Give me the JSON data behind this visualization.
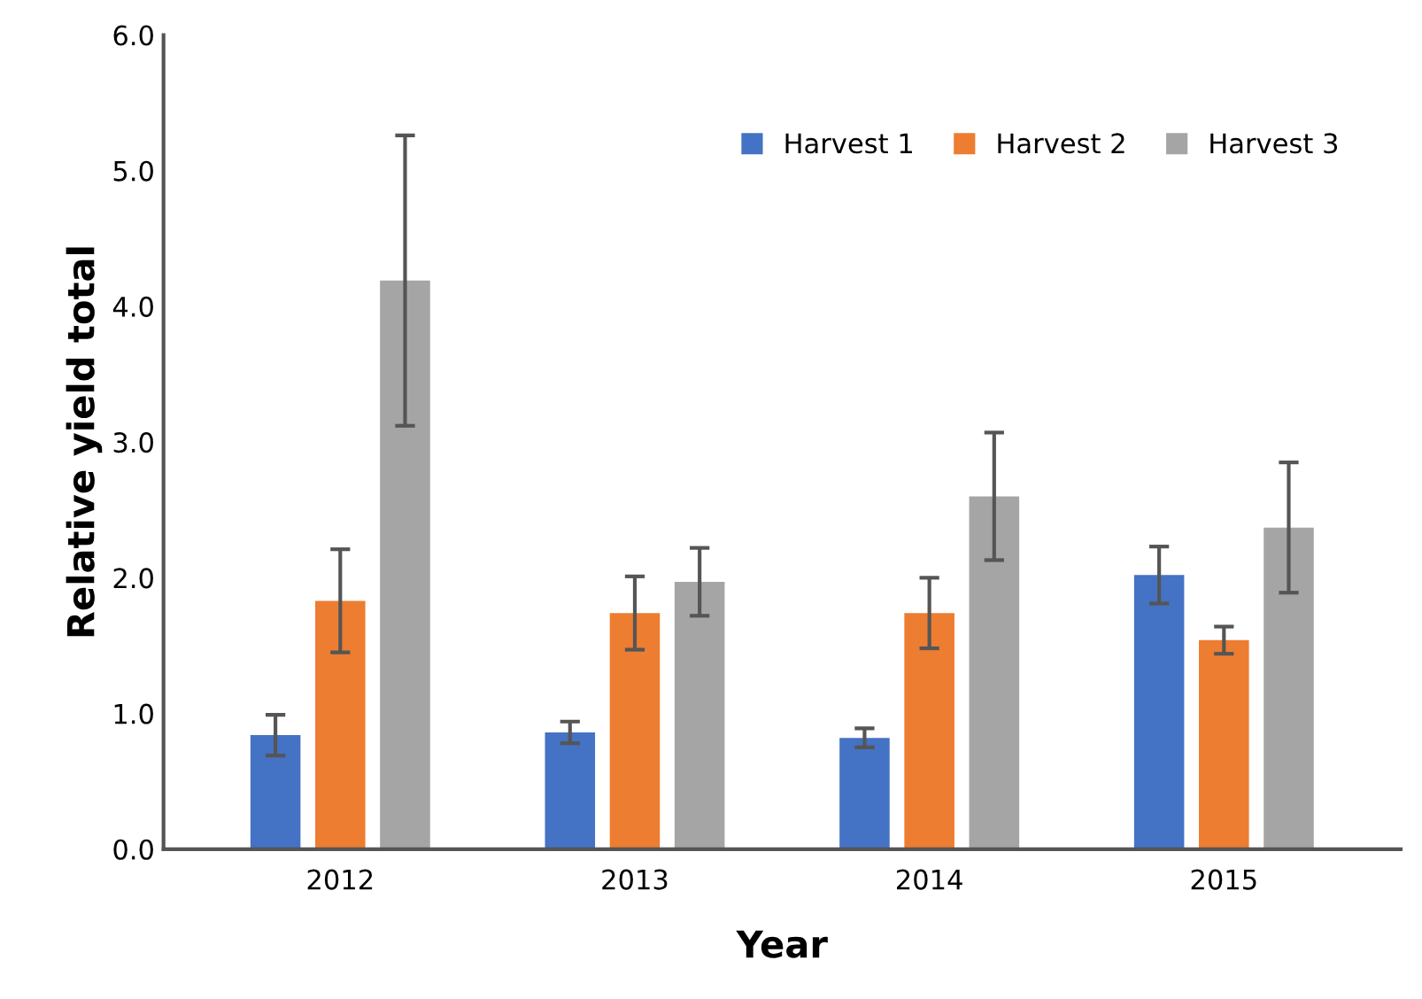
{
  "chart_data": {
    "type": "bar",
    "xlabel": "Year",
    "ylabel": "Relative yield total",
    "categories": [
      "2012",
      "2013",
      "2014",
      "2015"
    ],
    "series": [
      {
        "name": "Harvest 1",
        "color": "#4472c4",
        "values": [
          0.84,
          0.86,
          0.82,
          2.02
        ],
        "errors": [
          0.15,
          0.08,
          0.07,
          0.21
        ]
      },
      {
        "name": "Harvest 2",
        "color": "#ed7d31",
        "values": [
          1.83,
          1.74,
          1.74,
          1.54
        ],
        "errors": [
          0.38,
          0.27,
          0.26,
          0.1
        ]
      },
      {
        "name": "Harvest 3",
        "color": "#a5a5a5",
        "values": [
          4.19,
          1.97,
          2.6,
          2.37
        ],
        "errors": [
          1.07,
          0.25,
          0.47,
          0.48
        ]
      }
    ],
    "ylim": [
      0,
      6
    ],
    "yticks": [
      {
        "value": 0,
        "label": "0.0"
      },
      {
        "value": 1,
        "label": "1.0"
      },
      {
        "value": 2,
        "label": "2.0"
      },
      {
        "value": 3,
        "label": "3.0"
      },
      {
        "value": 4,
        "label": "4.0"
      },
      {
        "value": 5,
        "label": "5.0"
      },
      {
        "value": 6,
        "label": "6.0"
      }
    ],
    "grid": false,
    "legend": "top right"
  }
}
